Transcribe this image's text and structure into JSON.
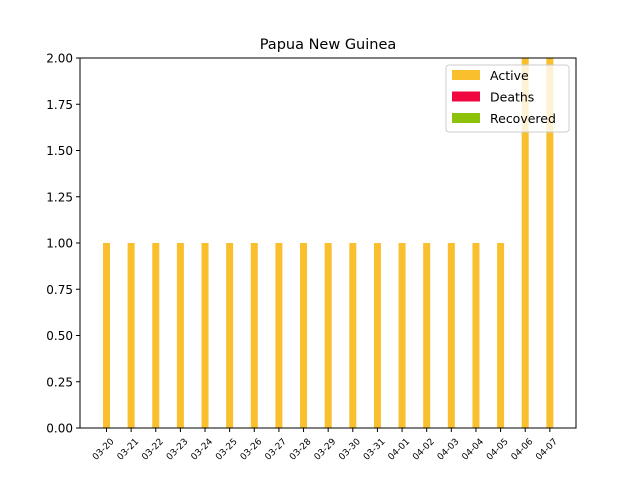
{
  "chart_data": {
    "type": "bar",
    "title": "Papua New Guinea",
    "categories": [
      "03-20",
      "03-21",
      "03-22",
      "03-23",
      "03-24",
      "03-25",
      "03-26",
      "03-27",
      "03-28",
      "03-29",
      "03-30",
      "03-31",
      "04-01",
      "04-02",
      "04-03",
      "04-04",
      "04-05",
      "04-06",
      "04-07"
    ],
    "stacked": true,
    "series": [
      {
        "name": "Active",
        "color": "#f9bf2c",
        "values": [
          1,
          1,
          1,
          1,
          1,
          1,
          1,
          1,
          1,
          1,
          1,
          1,
          1,
          1,
          1,
          1,
          1,
          2,
          2
        ]
      },
      {
        "name": "Deaths",
        "color": "#f0073f",
        "values": [
          0,
          0,
          0,
          0,
          0,
          0,
          0,
          0,
          0,
          0,
          0,
          0,
          0,
          0,
          0,
          0,
          0,
          0,
          0
        ]
      },
      {
        "name": "Recovered",
        "color": "#8cc30a",
        "values": [
          0,
          0,
          0,
          0,
          0,
          0,
          0,
          0,
          0,
          0,
          0,
          0,
          0,
          0,
          0,
          0,
          0,
          0,
          0
        ]
      }
    ],
    "ylim": [
      0,
      2
    ],
    "yticks": [
      "0.00",
      "0.25",
      "0.50",
      "0.75",
      "1.00",
      "1.25",
      "1.50",
      "1.75",
      "2.00"
    ],
    "grid": false,
    "legend_position": "top-right"
  }
}
